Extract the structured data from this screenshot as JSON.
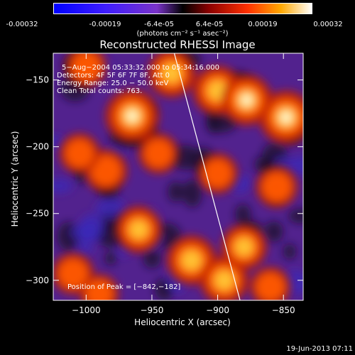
{
  "chart_data": {
    "type": "heatmap",
    "title": "Reconstructed RHESSI Image",
    "colorbar": {
      "ticks": [
        "-0.00032",
        "-0.00019",
        "-6.4e-05",
        "6.4e-05",
        "0.00019",
        "0.00032"
      ],
      "label": "(photons cm⁻² s⁻¹ asec⁻²)",
      "range": [
        -0.00032,
        0.00032
      ]
    },
    "xlabel": "Heliocentric X (arcsec)",
    "ylabel": "Heliocentric Y (arcsec)",
    "xlim": [
      -1025,
      -835
    ],
    "ylim": [
      -315,
      -130
    ],
    "xticks": [
      -1000,
      -950,
      -900,
      -850
    ],
    "yticks": [
      -150,
      -200,
      -250,
      -300
    ],
    "xtick_labels": [
      "−1000",
      "−950",
      "−900",
      "−850"
    ],
    "ytick_labels": [
      "−150",
      "−200",
      "−250",
      "−300"
    ],
    "annotations": [
      "5−Aug−2004 05:33:32.000 to 05:34:16.000",
      "Detectors: 4F 5F 6F 7F 8F, Att 0",
      "Energy Range: 25.0 − 50.0 keV",
      "Clean     Total counts: 763."
    ],
    "peak_label": "Position of Peak = [−842,−182]",
    "peak": [
      -842,
      -182
    ],
    "limb_line": [
      [
        -933,
        -130
      ],
      [
        -883,
        -315
      ]
    ],
    "hotspots": [
      {
        "x": -965,
        "y": -177,
        "v": 1.0
      },
      {
        "x": -848,
        "y": -178,
        "v": 1.0
      },
      {
        "x": -900,
        "y": -158,
        "v": 0.85
      },
      {
        "x": -878,
        "y": -165,
        "v": 0.9
      },
      {
        "x": -935,
        "y": -145,
        "v": 0.8
      },
      {
        "x": -1000,
        "y": -140,
        "v": 0.55
      },
      {
        "x": -985,
        "y": -218,
        "v": 0.6
      },
      {
        "x": -1005,
        "y": -205,
        "v": 0.5
      },
      {
        "x": -960,
        "y": -262,
        "v": 0.75
      },
      {
        "x": -920,
        "y": -285,
        "v": 0.85
      },
      {
        "x": -895,
        "y": -300,
        "v": 0.8
      },
      {
        "x": -880,
        "y": -275,
        "v": 0.7
      },
      {
        "x": -855,
        "y": -230,
        "v": 0.55
      },
      {
        "x": -1010,
        "y": -295,
        "v": 0.55
      },
      {
        "x": -990,
        "y": -310,
        "v": 0.45
      },
      {
        "x": -945,
        "y": -205,
        "v": 0.5
      },
      {
        "x": -900,
        "y": -220,
        "v": 0.5
      },
      {
        "x": -860,
        "y": -305,
        "v": 0.5
      }
    ]
  },
  "footer": {
    "timestamp": "19-Jun-2013 07:11"
  }
}
